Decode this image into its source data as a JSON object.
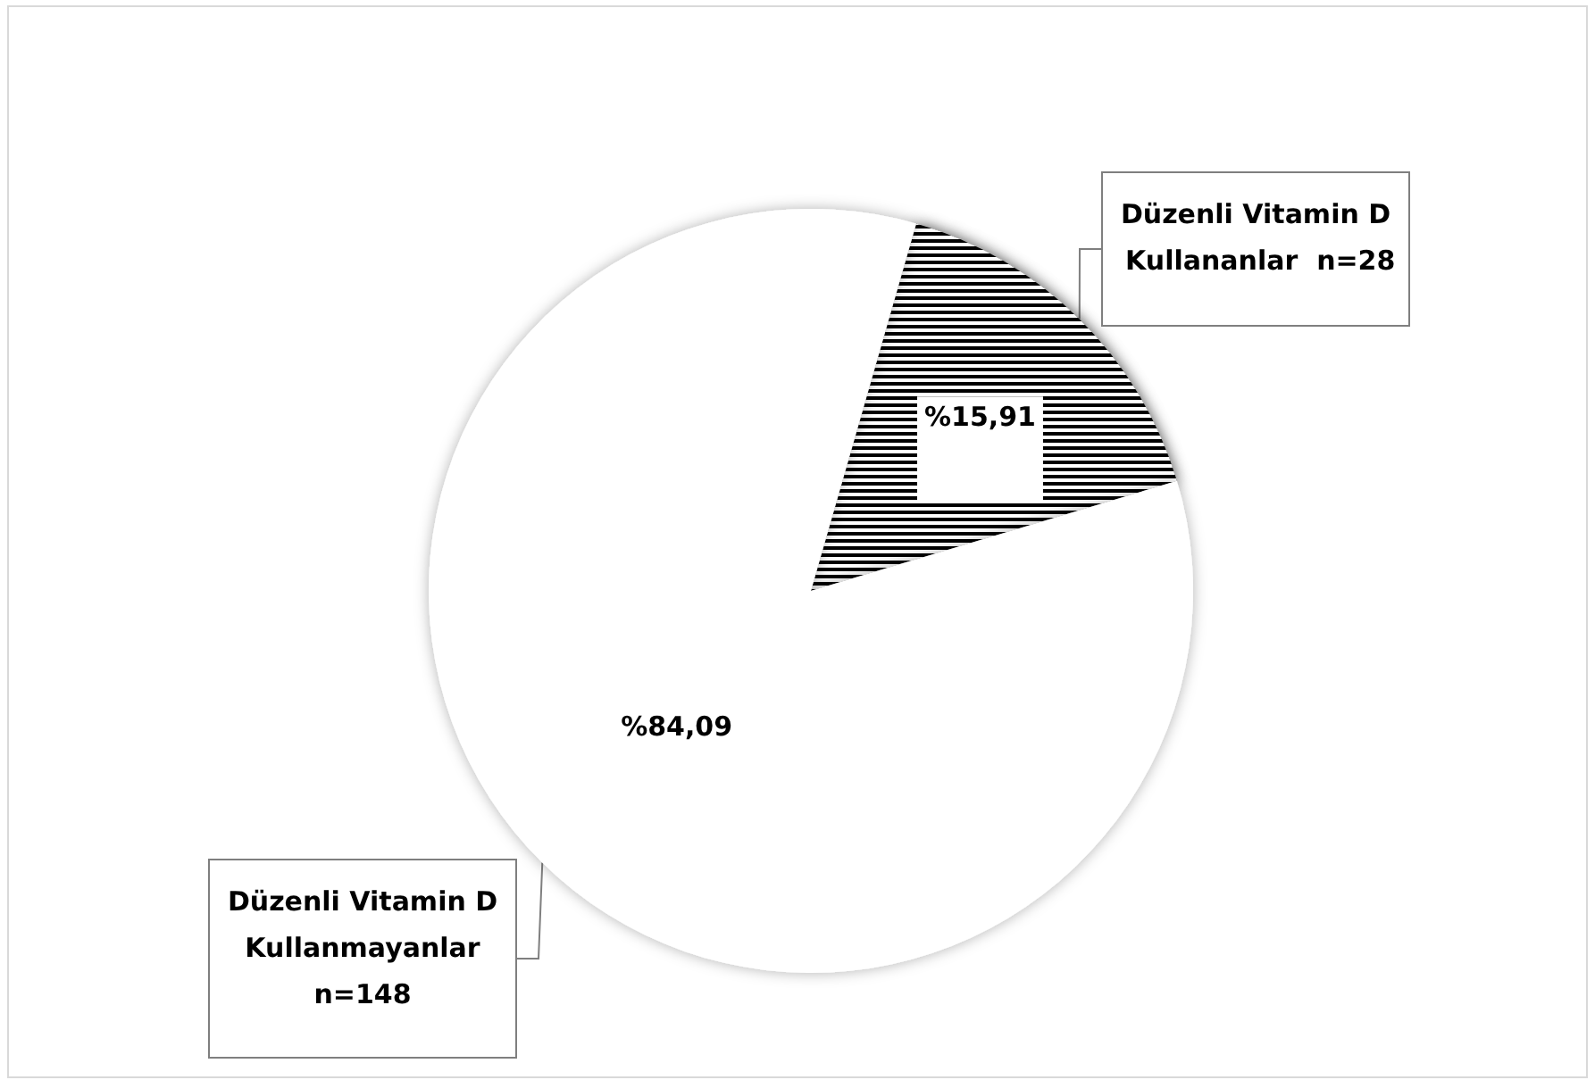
{
  "chart_data": {
    "type": "pie",
    "categories": [
      "Düzenli Vitamin D Kullananlar  n=28",
      "Düzenli Vitamin D Kullanmayanlar n=148"
    ],
    "values": [
      15.91,
      84.09
    ],
    "colors": [
      "#000000",
      "#ffffff"
    ],
    "value_labels": [
      "%15,91",
      "%84,09"
    ]
  }
}
